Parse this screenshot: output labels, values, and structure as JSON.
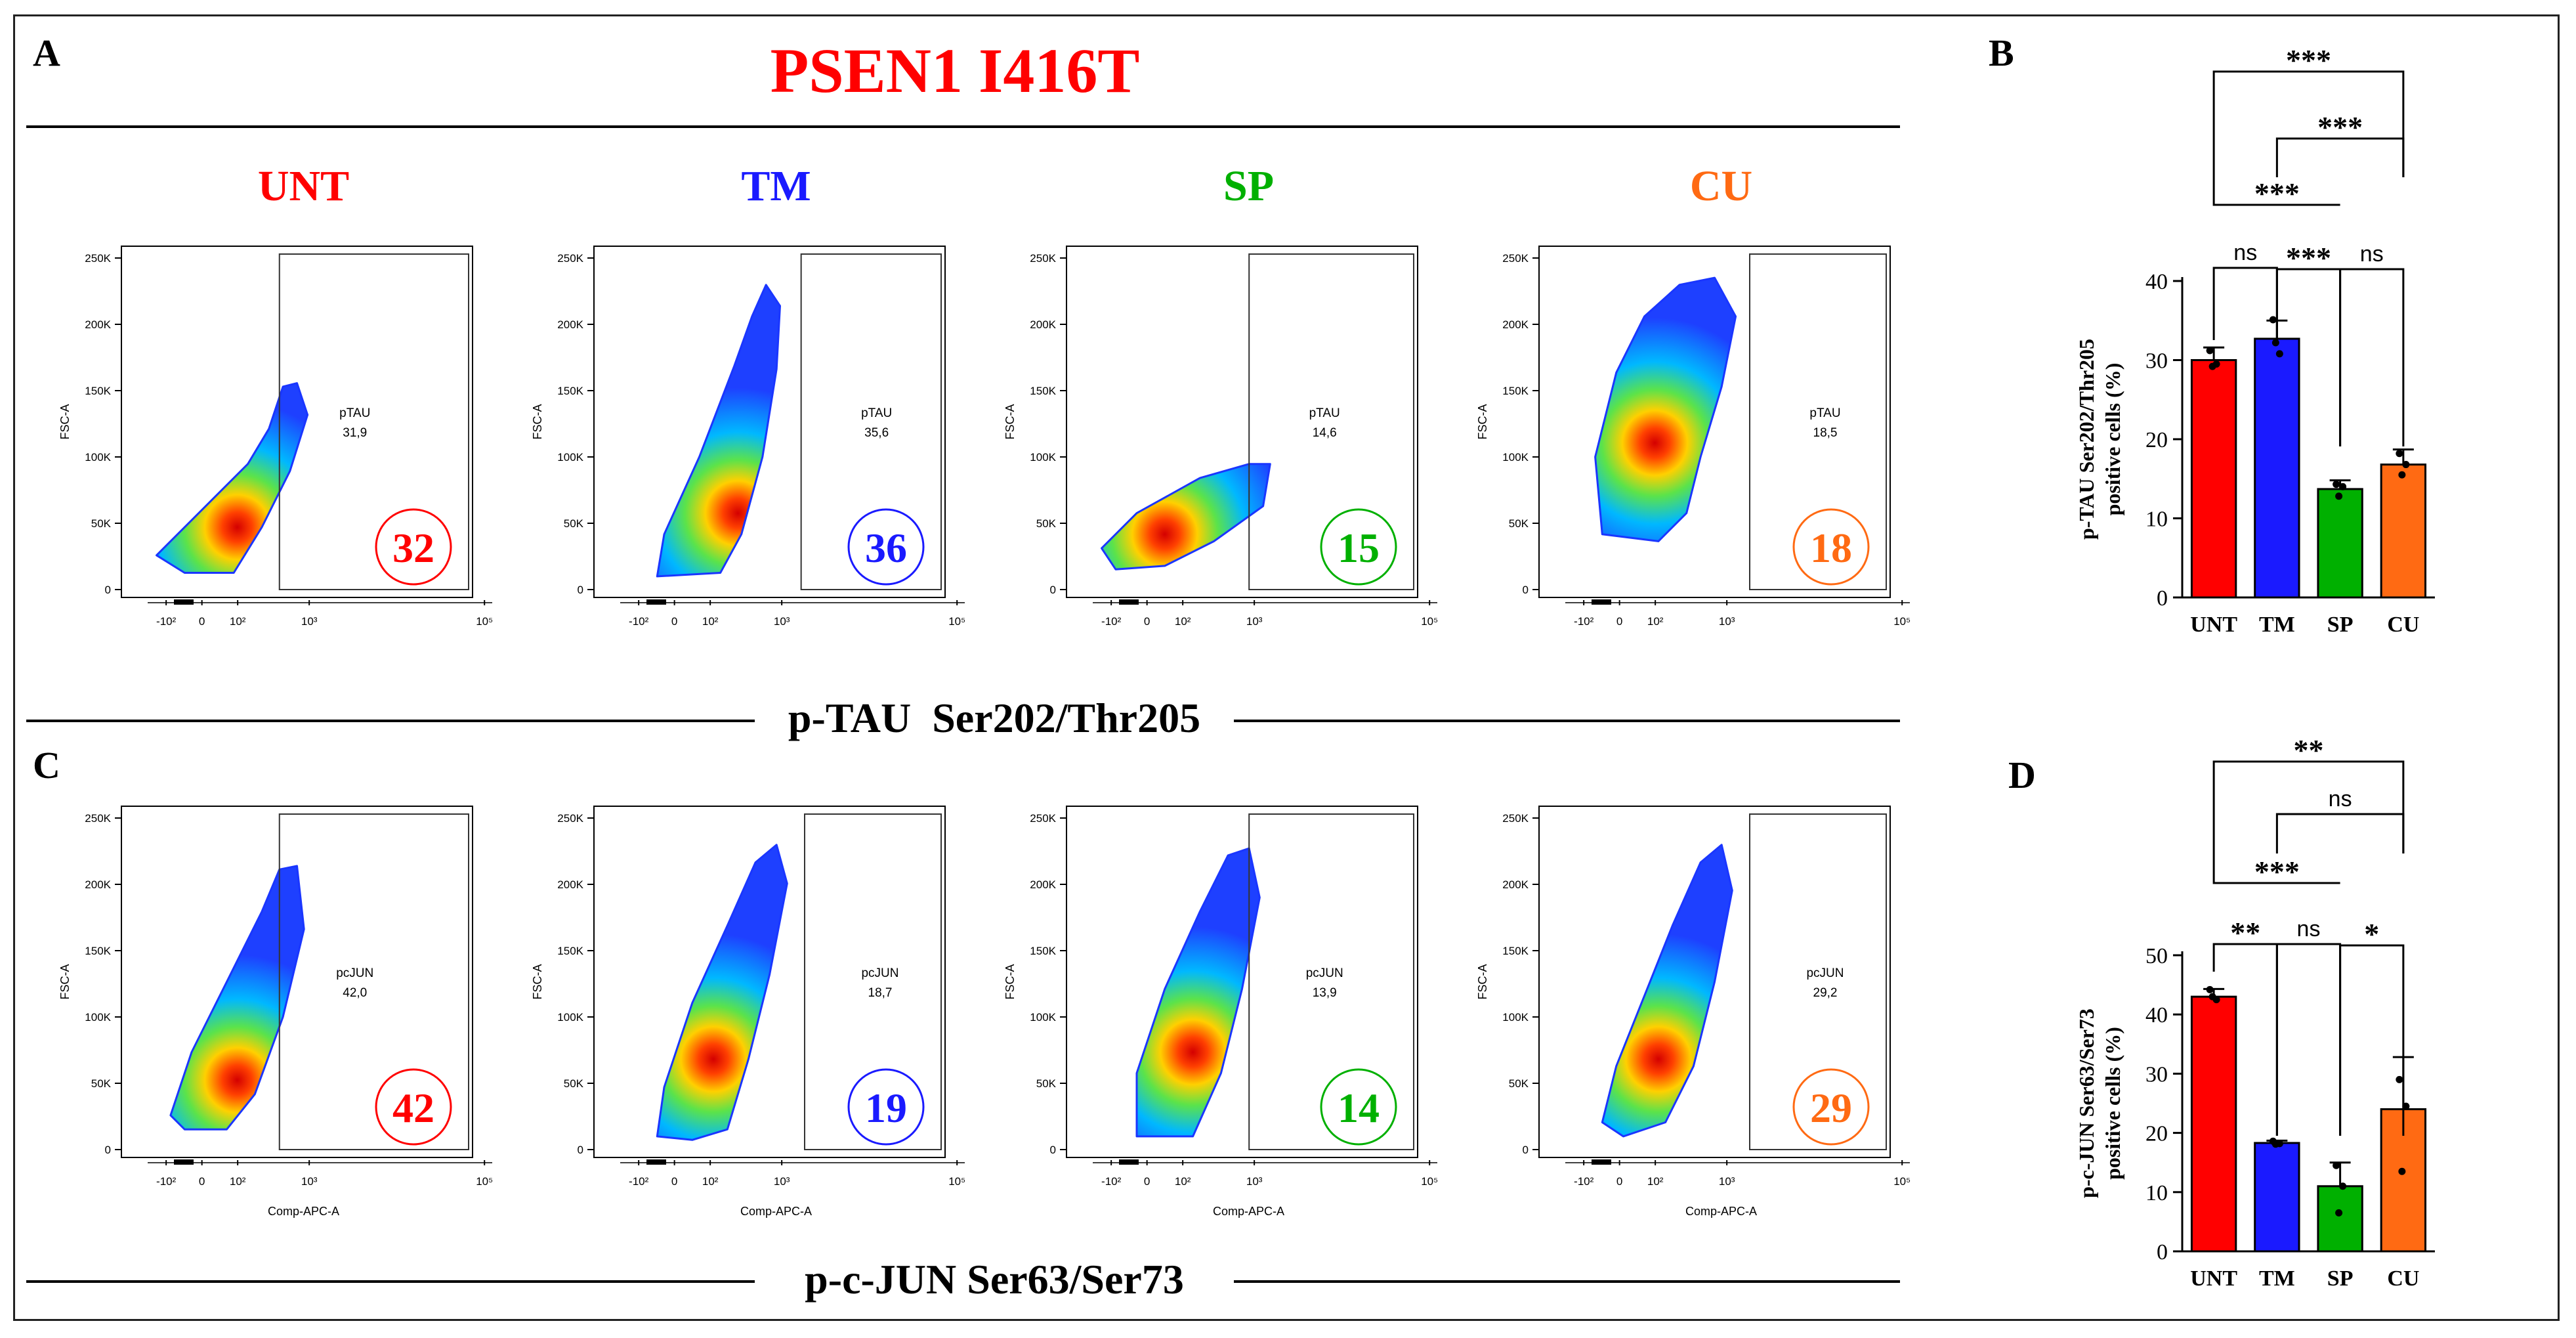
{
  "figure": {
    "main_title": "PSEN1 I416T",
    "panel_letters": {
      "A": "A",
      "B": "B",
      "C": "C",
      "D": "D"
    },
    "section_labels": {
      "tau": "p-TAU  Ser202/Thr205",
      "jun": "p-c-JUN Ser63/Ser73"
    }
  },
  "colors": {
    "UNT": "#ff0000",
    "TM": "#1a1aff",
    "SP": "#00b000",
    "CU": "#ff6a13",
    "title": "#ff0000"
  },
  "flow": {
    "conditions": [
      "UNT",
      "TM",
      "SP",
      "CU"
    ],
    "y_axis_label": "FSC-A",
    "x_axis_label": "Comp-APC-A",
    "y_ticks": [
      "0",
      "50K",
      "100K",
      "150K",
      "200K",
      "250K"
    ],
    "x_ticks": [
      "-10²",
      "0",
      "10²",
      "10³",
      "10⁵"
    ],
    "tau": {
      "gate_name": "pTAU",
      "gate_values": [
        "31,9",
        "35,6",
        "14,6",
        "18,5"
      ],
      "circle_values": [
        "32",
        "36",
        "15",
        "18"
      ]
    },
    "jun": {
      "gate_name": "pcJUN",
      "gate_values": [
        "42,0",
        "18,7",
        "13,9",
        "29,2"
      ],
      "circle_values": [
        "42",
        "19",
        "14",
        "29"
      ]
    }
  },
  "chart_data": [
    {
      "panel": "B",
      "type": "bar",
      "categories": [
        "UNT",
        "TM",
        "SP",
        "CU"
      ],
      "values": [
        30,
        32.7,
        13.7,
        16.8
      ],
      "errors": [
        1.6,
        2.3,
        1.1,
        1.9
      ],
      "points": [
        [
          31.2,
          29.5,
          29.2
        ],
        [
          35.1,
          30.8,
          32.2
        ],
        [
          14.3,
          14.0,
          12.8
        ],
        [
          18.2,
          16.8,
          15.5
        ]
      ],
      "ylabel": "p-TAU Ser202/Thr205\npositive cells (%)",
      "ylim": [
        0,
        40
      ],
      "yticks": [
        0,
        10,
        20,
        30,
        40
      ],
      "significance": [
        {
          "from": "UNT",
          "to": "CU",
          "label": "***"
        },
        {
          "from": "TM",
          "to": "CU",
          "label": "***"
        },
        {
          "from": "UNT",
          "to": "SP",
          "label": "***"
        },
        {
          "from": "UNT",
          "to": "TM",
          "label": "ns"
        },
        {
          "from": "TM",
          "to": "SP",
          "label": "***"
        },
        {
          "from": "SP",
          "to": "CU",
          "label": "ns"
        }
      ]
    },
    {
      "panel": "D",
      "type": "bar",
      "categories": [
        "UNT",
        "TM",
        "SP",
        "CU"
      ],
      "values": [
        43,
        18.3,
        11,
        24
      ],
      "errors": [
        1.3,
        0.4,
        4,
        8.8
      ],
      "points": [
        [
          44.2,
          42.5,
          43.0
        ],
        [
          18.6,
          18.2,
          18.1
        ],
        [
          14.5,
          11.0,
          6.5
        ],
        [
          29.0,
          24.5,
          13.5
        ]
      ],
      "ylabel": "p-c-JUN Ser63/Ser73\npositive cells (%)",
      "ylim": [
        0,
        50
      ],
      "yticks": [
        0,
        10,
        20,
        30,
        40,
        50
      ],
      "significance": [
        {
          "from": "UNT",
          "to": "CU",
          "label": "**"
        },
        {
          "from": "TM",
          "to": "CU",
          "label": "ns"
        },
        {
          "from": "UNT",
          "to": "SP",
          "label": "***"
        },
        {
          "from": "UNT",
          "to": "TM",
          "label": "**"
        },
        {
          "from": "TM",
          "to": "SP",
          "label": "ns"
        },
        {
          "from": "SP",
          "to": "CU",
          "label": "*"
        }
      ]
    }
  ]
}
